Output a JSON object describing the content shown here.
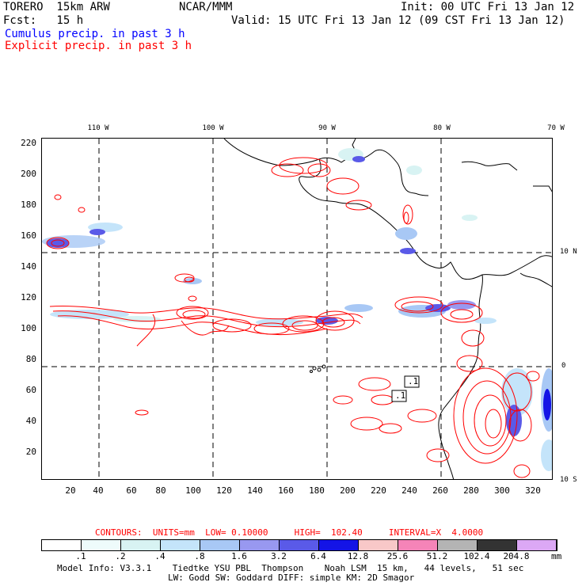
{
  "header": {
    "model": "TORERO  15km ARW",
    "org": "NCAR/MMM",
    "init": "Init: 00 UTC Fri 13 Jan 12",
    "fcst": "Fcst:   15 h",
    "valid": "Valid: 15 UTC Fri 13 Jan 12 (09 CST Fri 13 Jan 12)",
    "legend_cumulus": "Cumulus precip. in past 3 h",
    "legend_explicit": "Explicit precip. in past 3 h"
  },
  "axes": {
    "y_ticks": [
      "220",
      "200",
      "180",
      "160",
      "140",
      "120",
      "100",
      "80",
      "60",
      "40",
      "20"
    ],
    "x_ticks": [
      "20",
      "40",
      "60",
      "80",
      "100",
      "120",
      "140",
      "160",
      "180",
      "200",
      "220",
      "240",
      "260",
      "280",
      "300",
      "320"
    ],
    "lon_ticks": [
      "110 W",
      "100 W",
      "90 W",
      "80 W",
      "70 W"
    ],
    "lat_ticks": [
      "10 N",
      "0",
      "10 S"
    ]
  },
  "annotations": {
    "box1": ".1",
    "box2": ".1"
  },
  "contour_info": {
    "text": "CONTOURS:  UNITS=mm  LOW= 0.10000     HIGH=  102.40     INTERVAL=X  4.0000"
  },
  "colorbar": {
    "colors": [
      "#ffffff",
      "#eefbfb",
      "#d8f3f3",
      "#c4e4fa",
      "#a8c8f5",
      "#9898f0",
      "#5a5ae8",
      "#1414e6",
      "#f8c8c8",
      "#f584b8",
      "#b4b4b4",
      "#333333",
      "#dca8f5"
    ],
    "labels": [
      ".1",
      ".2",
      ".4",
      ".8",
      "1.6",
      "3.2",
      "6.4",
      "12.8",
      "25.6",
      "51.2",
      "102.4",
      "204.8"
    ],
    "unit": "mm"
  },
  "footer": {
    "line1": "Model Info: V3.3.1    Tiedtke YSU PBL  Thompson    Noah LSM  15 km,   44 levels,   51 sec",
    "line2": "LW: Godd SW: Goddard DIFF: simple KM: 2D Smagor"
  }
}
